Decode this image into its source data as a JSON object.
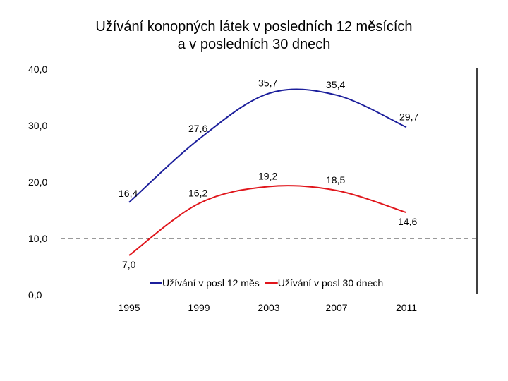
{
  "chart_data": {
    "type": "line",
    "title_lines": [
      "Užívání konopných látek v posledních 12 měsících",
      "a v posledních 30 dnech"
    ],
    "x": [
      "1995",
      "1999",
      "2003",
      "2007",
      "2011"
    ],
    "y_ticks": [
      "40,0",
      "30,0",
      "20,0",
      "10,0",
      "0,0"
    ],
    "ylim": [
      0,
      40
    ],
    "reference_line": 10,
    "legend_position": "bottom-center",
    "series": [
      {
        "name": "Užívání v posl 12 měs",
        "color": "#1c1f9c",
        "values": [
          16.4,
          27.6,
          35.7,
          35.4,
          29.7
        ],
        "labels": [
          "16,4",
          "27,6",
          "35,7",
          "35,4",
          "29,7"
        ]
      },
      {
        "name": "Užívání v posl 30 dnech",
        "color": "#e0151b",
        "values": [
          7.0,
          16.2,
          19.2,
          18.5,
          14.6
        ],
        "labels": [
          "7,0",
          "16,2",
          "19,2",
          "18,5",
          "14,6"
        ]
      }
    ]
  }
}
